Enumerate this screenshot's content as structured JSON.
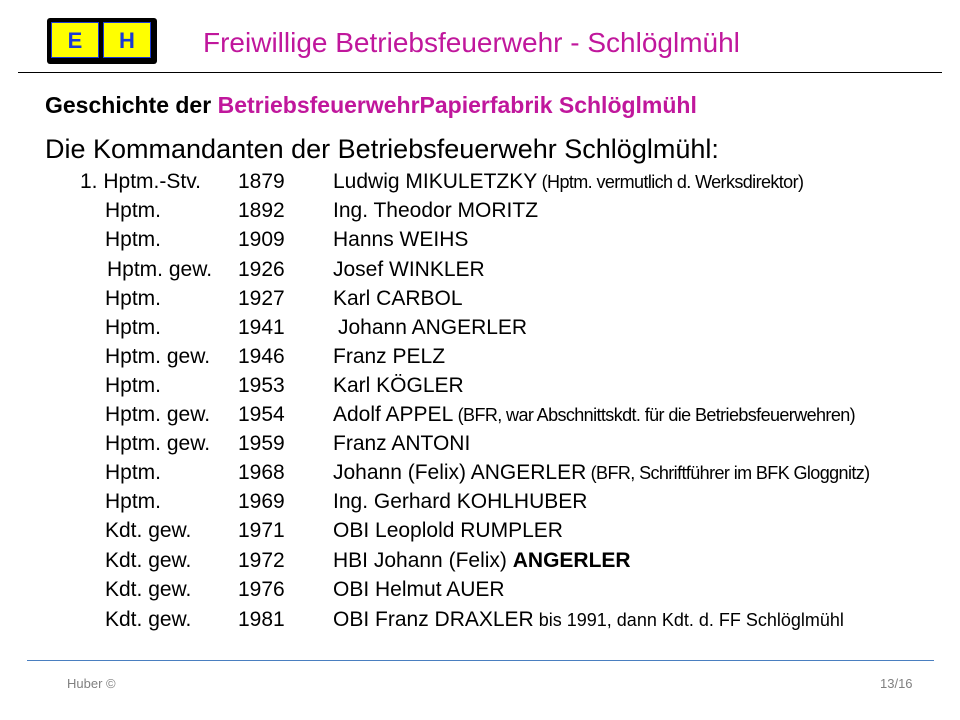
{
  "logo": {
    "left_letter": "E",
    "right_letter": "H"
  },
  "slide_title": "Freiwillige Betriebsfeuerwehr - Schlöglmühl",
  "heading": {
    "prefix": "Geschichte der ",
    "accent": "BetriebsfeuerwehrPapierfabrik  Schlöglmühl"
  },
  "subtitle": "Die Kommandanten der Betriebsfeuerwehr Schlöglmühl:",
  "commanders": [
    {
      "rank": "1. Hptm.-Stv.",
      "year": "1879",
      "name": "Ludwig MIKULETZKY",
      "note": " (Hptm. vermutlich d. Werksdirektor)"
    },
    {
      "rank": "Hptm.",
      "year": "1892",
      "name": "Ing. Theodor MORITZ",
      "note": ""
    },
    {
      "rank": "Hptm.",
      "year": "1909",
      "name": "Hanns WEIHS",
      "note": ""
    },
    {
      "rank": "Hptm. gew.",
      "year": "1926",
      "name": "Josef WINKLER",
      "note": ""
    },
    {
      "rank": "Hptm.",
      "year": "1927",
      "name": "Karl CARBOL",
      "note": ""
    },
    {
      "rank": "Hptm.",
      "year": "1941",
      "name": "Johann ANGERLER",
      "note": ""
    },
    {
      "rank": "Hptm. gew.",
      "year": "1946",
      "name": "Franz PELZ",
      "note": ""
    },
    {
      "rank": "Hptm.",
      "year": "1953",
      "name": "Karl KÖGLER",
      "note": ""
    },
    {
      "rank": "Hptm. gew.",
      "year": "1954",
      "name": "Adolf APPEL",
      "note": " (BFR, war Abschnittskdt. für die Betriebsfeuerwehren)"
    },
    {
      "rank": "Hptm. gew.",
      "year": "1959",
      "name": "Franz ANTONI",
      "note": ""
    },
    {
      "rank": "Hptm.",
      "year": "1968",
      "name": "Johann (Felix) ANGERLER",
      "note": " (BFR, Schriftführer im BFK Gloggnitz)"
    },
    {
      "rank": "Hptm.",
      "year": "1969",
      "name": "Ing. Gerhard KOHLHUBER",
      "note": ""
    },
    {
      "rank": "Kdt. gew.",
      "year": "1971",
      "name": "OBI Leoplold RUMPLER",
      "note": ""
    },
    {
      "rank": "Kdt. gew.",
      "year": "1972",
      "name": "HBI Johann (Felix) ",
      "bold_name": "ANGERLER",
      "note": ""
    },
    {
      "rank": "Kdt. gew.",
      "year": "1976",
      "name": "OBI Helmut AUER",
      "note": ""
    },
    {
      "rank": "Kdt. gew.",
      "year": "1981",
      "name": "OBI  Franz DRAXLER",
      "note2": " bis 1991, dann Kdt. d. FF Schlöglmühl"
    }
  ],
  "footer": {
    "author": "Huber  ©",
    "page": "13/16"
  },
  "colors": {
    "accent": "#c0179c",
    "logo_yellow": "#ffff00",
    "logo_blue": "#1a39d6",
    "footer_rule": "#4a7fc0"
  }
}
